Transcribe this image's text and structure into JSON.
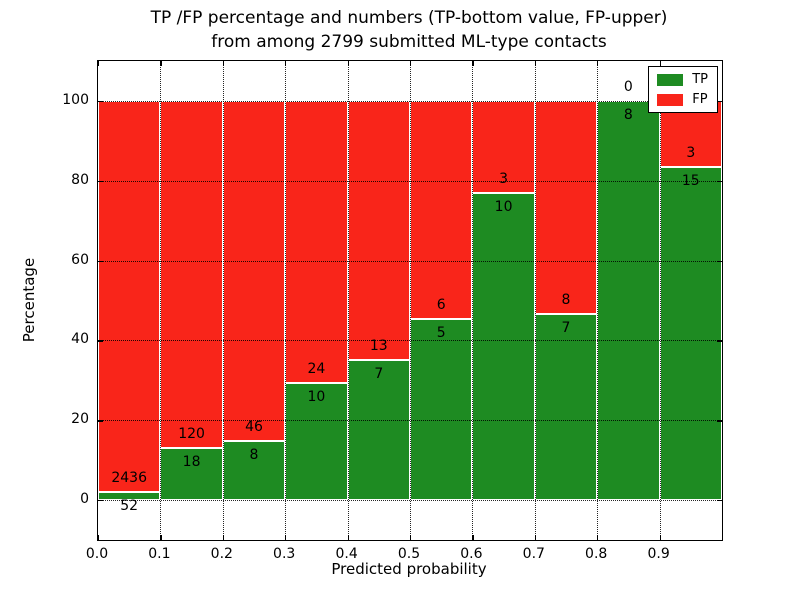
{
  "title": {
    "line1": "TP /FP percentage and numbers (TP-bottom value, FP-upper)",
    "line2": "from among 2799 submitted ML-type contacts"
  },
  "chart_data": {
    "type": "bar",
    "stacked": true,
    "title": "TP /FP percentage and numbers (TP-bottom value, FP-upper) from among 2799 submitted ML-type contacts",
    "xlabel": "Predicted probability",
    "ylabel": "Percentage",
    "xlim": [
      0,
      1.0
    ],
    "ylim": [
      -10,
      110
    ],
    "grid": "dotted",
    "legend_position": "upper right",
    "x_tick_labels": [
      "0.0",
      "0.1",
      "0.2",
      "0.3",
      "0.4",
      "0.5",
      "0.6",
      "0.7",
      "0.8",
      "0.9"
    ],
    "x_tick_values": [
      0,
      0.1,
      0.2,
      0.3,
      0.4,
      0.5,
      0.6,
      0.7,
      0.8,
      0.9
    ],
    "y_tick_labels": [
      "0",
      "20",
      "40",
      "60",
      "80",
      "100"
    ],
    "y_tick_values": [
      0,
      20,
      40,
      60,
      80,
      100
    ],
    "bin_width": 0.1,
    "categories": [
      "0.0-0.1",
      "0.1-0.2",
      "0.2-0.3",
      "0.3-0.4",
      "0.4-0.5",
      "0.5-0.6",
      "0.6-0.7",
      "0.7-0.8",
      "0.8-0.9",
      "0.9-1.0"
    ],
    "series": [
      {
        "name": "TP",
        "color": "#1e8b22",
        "counts": [
          52,
          18,
          8,
          10,
          7,
          5,
          10,
          7,
          8,
          15
        ]
      },
      {
        "name": "FP",
        "color": "#f9251a",
        "counts": [
          2436,
          120,
          46,
          24,
          13,
          6,
          3,
          8,
          0,
          3
        ]
      }
    ],
    "tp_percentages": [
      2.09,
      13.04,
      14.81,
      29.41,
      35.0,
      45.45,
      76.92,
      46.67,
      100.0,
      83.33
    ],
    "total_contacts": 2799,
    "label_offset_pct": 3.5
  },
  "legend": {
    "tp_label": "TP",
    "fp_label": "FP"
  }
}
